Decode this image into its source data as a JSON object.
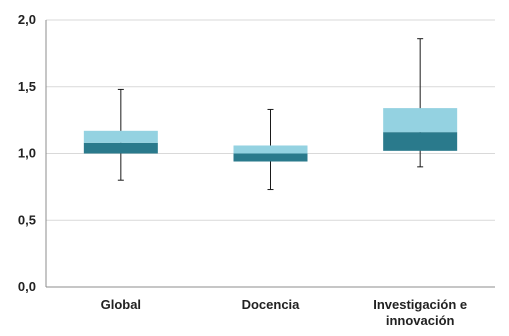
{
  "chart_data": {
    "type": "boxplot",
    "title": "",
    "xlabel": "",
    "ylabel": "",
    "ylim": [
      0,
      2
    ],
    "yticks": [
      "0,0",
      "0,5",
      "1,0",
      "1,5",
      "2,0"
    ],
    "categories": [
      {
        "label_lines": [
          "Global"
        ]
      },
      {
        "label_lines": [
          "Docencia"
        ]
      },
      {
        "label_lines": [
          "Investigación e",
          "innovación"
        ]
      }
    ],
    "boxes": [
      {
        "min": 0.8,
        "q1": 1.0,
        "median": 1.08,
        "q3": 1.17,
        "max": 1.48
      },
      {
        "min": 0.73,
        "q1": 0.94,
        "median": 1.0,
        "q3": 1.06,
        "max": 1.33
      },
      {
        "min": 0.9,
        "q1": 1.02,
        "median": 1.16,
        "q3": 1.34,
        "max": 1.86
      }
    ],
    "colors": {
      "lower_box": "#2a7a8c",
      "upper_box": "#94d2e1",
      "whisker": "#1a1a1a",
      "axis": "#8c8c8c",
      "gridline": "#d9d9d9"
    },
    "grid": "horizontal",
    "legend": "none"
  }
}
